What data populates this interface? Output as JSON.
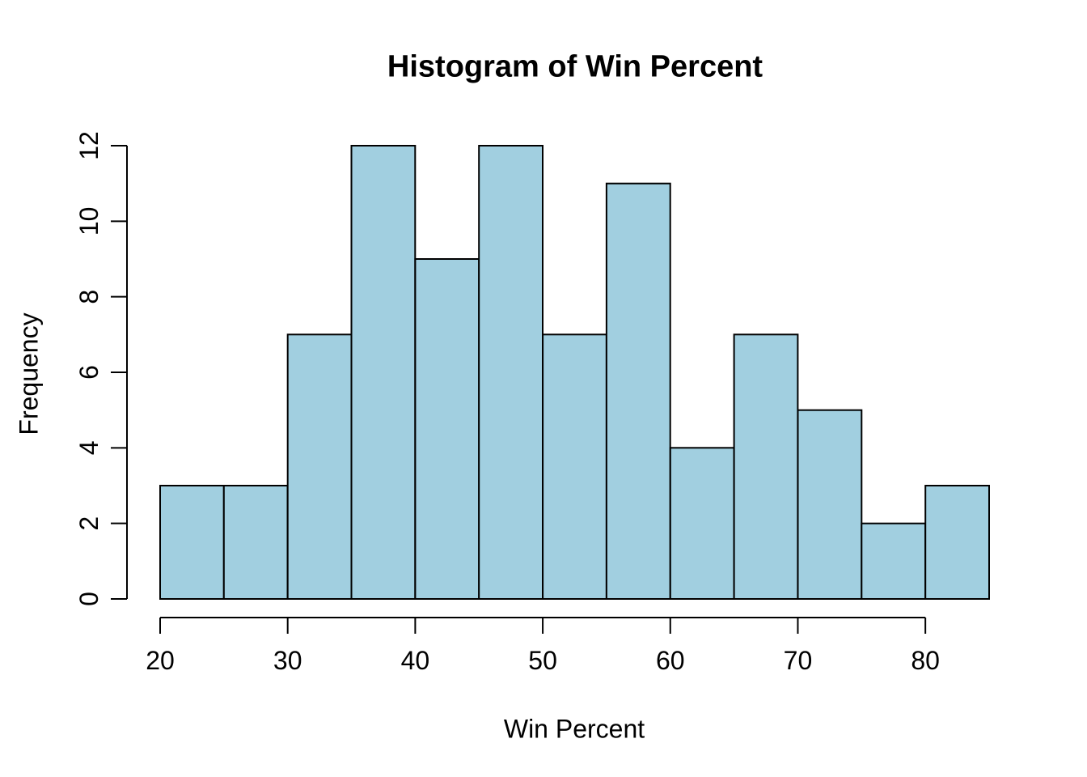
{
  "chart_data": {
    "type": "bar",
    "subtype": "histogram",
    "title": "Histogram of Win Percent",
    "xlabel": "Win Percent",
    "ylabel": "Frequency",
    "bin_edges": [
      20,
      25,
      30,
      35,
      40,
      45,
      50,
      55,
      60,
      65,
      70,
      75,
      80,
      85
    ],
    "counts": [
      3,
      3,
      7,
      12,
      9,
      12,
      7,
      11,
      4,
      7,
      5,
      2,
      3
    ],
    "x_ticks": [
      20,
      30,
      40,
      50,
      60,
      70,
      80
    ],
    "y_ticks": [
      0,
      2,
      4,
      6,
      8,
      10,
      12
    ],
    "xlim": [
      20,
      85
    ],
    "ylim": [
      0,
      12
    ],
    "grid": "off",
    "legend": "none",
    "bar_fill": "#A1CFE0",
    "bar_stroke": "#000000",
    "axis_color": "#000000",
    "background": "#FFFFFF"
  }
}
